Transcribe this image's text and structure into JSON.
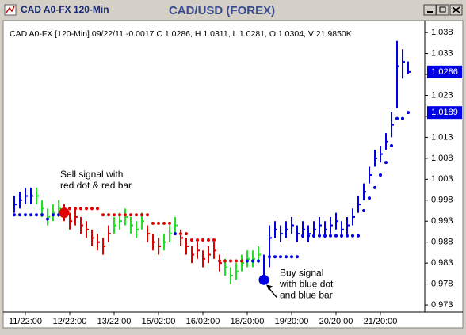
{
  "window": {
    "title": "CAD A0-FX 120-Min"
  },
  "chart_data": {
    "type": "ohlc",
    "title": "CAD/USD (FOREX)",
    "info": "CAD A0-FX [120-Min] 09/22/11  -0.0017 C 1.0286, H 1.0311, L 1.0281, O 1.0304, V 21.9850K",
    "categories": [
      null,
      null,
      "11/22:00",
      null,
      null,
      null,
      null,
      null,
      null,
      null,
      "12/22:00",
      null,
      null,
      null,
      null,
      null,
      null,
      null,
      "13/22:00",
      null,
      null,
      null,
      null,
      null,
      null,
      null,
      "15/02:00",
      null,
      null,
      null,
      null,
      null,
      null,
      null,
      "16/02:00",
      null,
      null,
      null,
      null,
      null,
      null,
      null,
      "18/20:00",
      null,
      null,
      null,
      null,
      null,
      null,
      null,
      "19/20:00",
      null,
      null,
      null,
      null,
      null,
      null,
      null,
      "20/20:00",
      null,
      null,
      null,
      null,
      null,
      null,
      null,
      "21/20:00",
      null,
      null,
      null,
      null,
      null
    ],
    "high": [
      0.999,
      1.0,
      1.001,
      1.001,
      1.001,
      0.998,
      0.996,
      0.997,
      0.998,
      0.997,
      0.995,
      0.996,
      0.994,
      0.993,
      0.991,
      0.99,
      0.989,
      0.992,
      0.994,
      0.995,
      0.996,
      0.994,
      0.993,
      0.995,
      0.992,
      0.99,
      0.989,
      0.99,
      0.992,
      0.994,
      0.991,
      0.989,
      0.987,
      0.988,
      0.986,
      0.987,
      0.988,
      0.985,
      0.984,
      0.982,
      0.983,
      0.985,
      0.986,
      0.986,
      0.987,
      0.985,
      0.992,
      0.993,
      0.992,
      0.993,
      0.994,
      0.992,
      0.993,
      0.992,
      0.993,
      0.994,
      0.993,
      0.994,
      0.995,
      0.993,
      0.994,
      0.996,
      0.999,
      1.002,
      1.006,
      1.01,
      1.011,
      1.014,
      1.019,
      1.036,
      1.034,
      1.0311
    ],
    "low": [
      0.995,
      0.996,
      0.997,
      0.997,
      0.997,
      0.994,
      0.992,
      0.993,
      0.994,
      0.993,
      0.991,
      0.992,
      0.99,
      0.989,
      0.987,
      0.986,
      0.985,
      0.988,
      0.99,
      0.991,
      0.992,
      0.99,
      0.989,
      0.991,
      0.988,
      0.986,
      0.985,
      0.986,
      0.988,
      0.99,
      0.987,
      0.985,
      0.983,
      0.984,
      0.982,
      0.983,
      0.984,
      0.981,
      0.98,
      0.978,
      0.979,
      0.981,
      0.982,
      0.982,
      0.983,
      0.978,
      0.982,
      0.989,
      0.988,
      0.989,
      0.99,
      0.988,
      0.989,
      0.988,
      0.989,
      0.99,
      0.989,
      0.99,
      0.991,
      0.989,
      0.99,
      0.992,
      0.995,
      0.998,
      1.002,
      1.006,
      1.007,
      1.01,
      1.013,
      1.02,
      1.027,
      1.0281
    ],
    "close": [
      0.997,
      0.998,
      0.999,
      0.999,
      0.999,
      0.996,
      0.994,
      0.995,
      0.996,
      0.995,
      0.993,
      0.994,
      0.992,
      0.991,
      0.989,
      0.988,
      0.987,
      0.99,
      0.992,
      0.993,
      0.994,
      0.992,
      0.991,
      0.993,
      0.99,
      0.988,
      0.987,
      0.988,
      0.99,
      0.992,
      0.989,
      0.987,
      0.985,
      0.986,
      0.984,
      0.985,
      0.986,
      0.983,
      0.982,
      0.98,
      0.981,
      0.983,
      0.984,
      0.984,
      0.985,
      0.979,
      0.989,
      0.991,
      0.99,
      0.991,
      0.992,
      0.99,
      0.991,
      0.99,
      0.991,
      0.992,
      0.991,
      0.992,
      0.993,
      0.991,
      0.992,
      0.994,
      0.997,
      1.0,
      1.004,
      1.008,
      1.009,
      1.012,
      1.016,
      1.03,
      1.031,
      1.0286
    ],
    "bar_colors": [
      "#0000e6",
      "#0000e6",
      "#0000e6",
      "#0000e6",
      "#22e022",
      "#22e022",
      "#22e022",
      "#22e022",
      "#22e022",
      "#e00000",
      "#e00000",
      "#e00000",
      "#e00000",
      "#e00000",
      "#e00000",
      "#e00000",
      "#e00000",
      "#e00000",
      "#22e022",
      "#22e022",
      "#22e022",
      "#22e022",
      "#22e022",
      "#22e022",
      "#e00000",
      "#e00000",
      "#e00000",
      "#22e022",
      "#22e022",
      "#22e022",
      "#e00000",
      "#e00000",
      "#e00000",
      "#e00000",
      "#e00000",
      "#e00000",
      "#e00000",
      "#e00000",
      "#22e022",
      "#22e022",
      "#22e022",
      "#22e022",
      "#22e022",
      "#22e022",
      "#22e022",
      "#0000e6",
      "#0000e6",
      "#0000e6",
      "#0000e6",
      "#0000e6",
      "#0000e6",
      "#0000e6",
      "#0000e6",
      "#0000e6",
      "#0000e6",
      "#0000e6",
      "#0000e6",
      "#0000e6",
      "#0000e6",
      "#0000e6",
      "#0000e6",
      "#0000e6",
      "#0000e6",
      "#0000e6",
      "#0000e6",
      "#0000e6",
      "#0000e6",
      "#0000e6",
      "#0000e6",
      "#0000e6",
      "#0000e6",
      "#0000e6"
    ],
    "dots": [
      0.9945,
      0.9945,
      0.9945,
      0.9945,
      0.9945,
      0.9945,
      0.9935,
      0.9945,
      0.9945,
      0.996,
      0.996,
      0.996,
      0.996,
      0.996,
      0.996,
      0.996,
      0.9945,
      0.9945,
      0.9945,
      0.9945,
      0.9945,
      0.9945,
      0.9945,
      0.9945,
      0.9945,
      0.9925,
      0.9925,
      0.9925,
      0.9925,
      0.99,
      0.99,
      0.99,
      0.9885,
      0.9885,
      0.9885,
      0.9885,
      0.9885,
      0.9835,
      0.9835,
      0.9835,
      0.9835,
      0.9835,
      0.9835,
      0.9835,
      0.9835,
      null,
      0.9845,
      0.9845,
      0.9845,
      0.9845,
      0.9845,
      0.9845,
      0.9895,
      0.9895,
      0.9895,
      0.9895,
      0.9895,
      0.9895,
      0.9895,
      0.9895,
      0.9895,
      0.9895,
      0.9895,
      0.9955,
      0.9985,
      1.001,
      1.004,
      1.007,
      1.011,
      1.0175,
      1.0175,
      1.0189
    ],
    "dot_above_color": "#e00000",
    "dot_below_color": "#0000e6",
    "annotations": [
      {
        "lines": [
          "Sell signal with",
          "red dot & red bar"
        ],
        "bar": 9,
        "color": "#e00000"
      },
      {
        "lines": [
          "Buy signal",
          "with blue dot",
          "and blue bar"
        ],
        "bar": 45,
        "color": "#0000e6"
      }
    ],
    "ylim": [
      0.9715,
      1.0401
    ],
    "yticks": [
      1.038,
      1.033,
      1.028,
      1.023,
      1.018,
      1.013,
      1.008,
      1.003,
      0.998,
      0.993,
      0.988,
      0.983,
      0.978,
      0.973
    ]
  }
}
